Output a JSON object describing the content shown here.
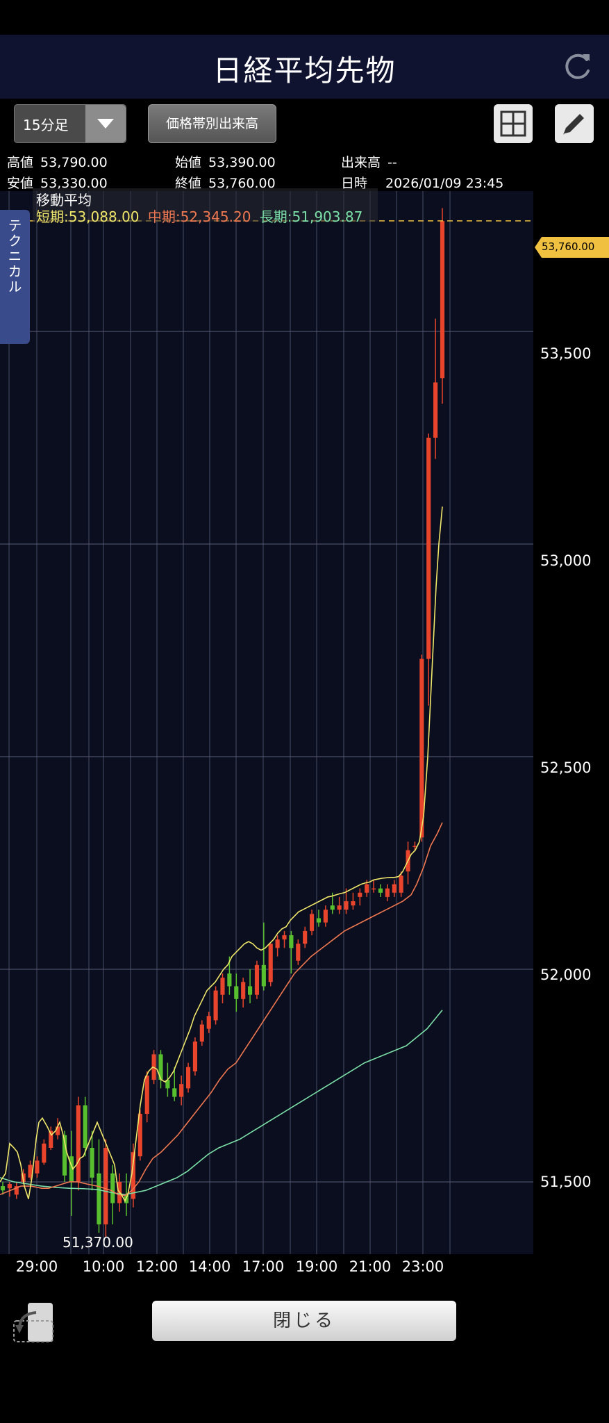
{
  "header": {
    "title": "日経平均先物"
  },
  "toolbar": {
    "timeframe": "15分足",
    "volume_profile_label": "価格帯別出来高"
  },
  "quote": {
    "high_label": "高値",
    "high": "53,790.00",
    "low_label": "安値",
    "low": "53,330.00",
    "open_label": "始値",
    "open": "53,390.00",
    "close_label": "終値",
    "close": "53,760.00",
    "volume_label": "出来高",
    "volume": "--",
    "datetime_label": "日時",
    "datetime": "2026/01/09 23:45"
  },
  "technical_tab": "テクニカル",
  "moving_average": {
    "title": "移動平均",
    "short": "短期:53,088.00",
    "mid": "中期:52,345.20",
    "long": "長期:51,903.87",
    "colors": {
      "short": "#f0e76a",
      "mid": "#f07850",
      "long": "#7be0a8"
    }
  },
  "chart_data": {
    "type": "candlestick",
    "ylim": [
      51330,
      53830
    ],
    "y_ticks": [
      "53,500",
      "53,000",
      "52,500",
      "52,000",
      "51,500"
    ],
    "y_tick_values": [
      53500,
      53000,
      52500,
      52000,
      51500
    ],
    "x_ticks": [
      "29:00",
      "10:00",
      "12:00",
      "14:00",
      "17:00",
      "19:00",
      "21:00",
      "23:00"
    ],
    "last_price": "53,760.00",
    "last_price_value": 53760,
    "session_low_label": "51,370.00",
    "colors": {
      "up": "#e8452c",
      "down": "#58c02f",
      "last_line": "#f0c040",
      "grid": "#4a4e66",
      "bg": "#0b0e1e"
    },
    "candles": [
      [
        51490,
        51500,
        51470,
        51480
      ],
      [
        51485,
        51500,
        51465,
        51495
      ],
      [
        51470,
        51500,
        51460,
        51490
      ],
      [
        51500,
        51530,
        51495,
        51520
      ],
      [
        51510,
        51550,
        51505,
        51540
      ],
      [
        51520,
        51560,
        51510,
        51550
      ],
      [
        51545,
        51600,
        51540,
        51590
      ],
      [
        51580,
        51630,
        51575,
        51620
      ],
      [
        51610,
        51650,
        51600,
        51630
      ],
      [
        51610,
        51620,
        51500,
        51515
      ],
      [
        51560,
        51620,
        51420,
        51500
      ],
      [
        51500,
        51700,
        51480,
        51680
      ],
      [
        51680,
        51700,
        51560,
        51580
      ],
      [
        51580,
        51620,
        51480,
        51510
      ],
      [
        51520,
        51600,
        51380,
        51400
      ],
      [
        51400,
        51600,
        51370,
        51580
      ],
      [
        51520,
        51540,
        51400,
        51450
      ],
      [
        51450,
        51520,
        51430,
        51500
      ],
      [
        51470,
        51520,
        51420,
        51450
      ],
      [
        51460,
        51590,
        51440,
        51570
      ],
      [
        51560,
        51670,
        51550,
        51660
      ],
      [
        51660,
        51760,
        51640,
        51750
      ],
      [
        51740,
        51810,
        51730,
        51800
      ],
      [
        51800,
        51810,
        51720,
        51740
      ],
      [
        51740,
        51780,
        51700,
        51720
      ],
      [
        51720,
        51770,
        51690,
        51700
      ],
      [
        51700,
        51750,
        51680,
        51730
      ],
      [
        51720,
        51780,
        51710,
        51770
      ],
      [
        51760,
        51840,
        51750,
        51830
      ],
      [
        51830,
        51880,
        51820,
        51870
      ],
      [
        51860,
        51900,
        51850,
        51890
      ],
      [
        51880,
        51960,
        51870,
        51950
      ],
      [
        51940,
        51990,
        51920,
        51980
      ],
      [
        51990,
        52030,
        51940,
        51960
      ],
      [
        51960,
        51990,
        51900,
        51930
      ],
      [
        51930,
        51980,
        51910,
        51970
      ],
      [
        51960,
        52000,
        51920,
        51940
      ],
      [
        51940,
        52020,
        51930,
        52010
      ],
      [
        52010,
        52110,
        51950,
        51960
      ],
      [
        51970,
        52060,
        51960,
        52060
      ],
      [
        52050,
        52080,
        52030,
        52070
      ],
      [
        52070,
        52090,
        52050,
        52080
      ],
      [
        52080,
        52090,
        51990,
        52050
      ],
      [
        52020,
        52070,
        52010,
        52060
      ],
      [
        52060,
        52100,
        52050,
        52090
      ],
      [
        52090,
        52140,
        52080,
        52130
      ],
      [
        52120,
        52140,
        52100,
        52110
      ],
      [
        52110,
        52150,
        52100,
        52140
      ],
      [
        52150,
        52180,
        52130,
        52140
      ],
      [
        52140,
        52170,
        52130,
        52150
      ],
      [
        52140,
        52190,
        52130,
        52160
      ],
      [
        52150,
        52180,
        52140,
        52160
      ],
      [
        52170,
        52190,
        52150,
        52180
      ],
      [
        52180,
        52210,
        52170,
        52200
      ],
      [
        52190,
        52210,
        52180,
        52190
      ],
      [
        52190,
        52200,
        52170,
        52180
      ],
      [
        52170,
        52200,
        52160,
        52190
      ],
      [
        52180,
        52210,
        52170,
        52200
      ],
      [
        52180,
        52230,
        52170,
        52220
      ],
      [
        52230,
        52300,
        52200,
        52280
      ],
      [
        52290,
        52300,
        52280,
        52290
      ],
      [
        52310,
        52740,
        52300,
        52730
      ],
      [
        52730,
        53260,
        52620,
        53250
      ],
      [
        53250,
        53530,
        53200,
        53380
      ],
      [
        53390,
        53790,
        53330,
        53760
      ]
    ],
    "ma_short": [
      [
        0,
        51500
      ],
      [
        8,
        51520
      ],
      [
        14,
        51590
      ],
      [
        20,
        51580
      ],
      [
        25,
        51570
      ],
      [
        30,
        51540
      ],
      [
        35,
        51490
      ],
      [
        41,
        51460
      ],
      [
        46,
        51510
      ],
      [
        52,
        51600
      ],
      [
        56,
        51640
      ],
      [
        61,
        51650
      ],
      [
        68,
        51630
      ],
      [
        74,
        51610
      ],
      [
        80,
        51620
      ],
      [
        86,
        51640
      ],
      [
        91,
        51610
      ],
      [
        96,
        51570
      ],
      [
        100,
        51550
      ],
      [
        105,
        51530
      ],
      [
        110,
        51540
      ],
      [
        115,
        51555
      ],
      [
        120,
        51560
      ],
      [
        125,
        51580
      ],
      [
        130,
        51600
      ],
      [
        135,
        51620
      ],
      [
        140,
        51640
      ],
      [
        145,
        51620
      ],
      [
        150,
        51600
      ],
      [
        155,
        51580
      ],
      [
        160,
        51560
      ],
      [
        165,
        51540
      ],
      [
        170,
        51480
      ],
      [
        175,
        51470
      ],
      [
        180,
        51455
      ],
      [
        184,
        51470
      ],
      [
        190,
        51520
      ],
      [
        196,
        51600
      ],
      [
        202,
        51680
      ],
      [
        208,
        51740
      ],
      [
        214,
        51760
      ],
      [
        220,
        51770
      ],
      [
        226,
        51765
      ],
      [
        232,
        51740
      ],
      [
        238,
        51735
      ],
      [
        244,
        51745
      ],
      [
        250,
        51760
      ],
      [
        256,
        51785
      ],
      [
        262,
        51810
      ],
      [
        268,
        51835
      ],
      [
        274,
        51860
      ],
      [
        280,
        51890
      ],
      [
        286,
        51910
      ],
      [
        292,
        51930
      ],
      [
        298,
        51950
      ],
      [
        304,
        51960
      ],
      [
        310,
        51970
      ],
      [
        316,
        51985
      ],
      [
        322,
        52000
      ],
      [
        328,
        52010
      ],
      [
        334,
        52030
      ],
      [
        340,
        52040
      ],
      [
        346,
        52050
      ],
      [
        352,
        52060
      ],
      [
        358,
        52065
      ],
      [
        364,
        52060
      ],
      [
        370,
        52050
      ],
      [
        376,
        52045
      ],
      [
        382,
        52050
      ],
      [
        388,
        52060
      ],
      [
        394,
        52070
      ],
      [
        400,
        52085
      ],
      [
        406,
        52095
      ],
      [
        412,
        52100
      ],
      [
        418,
        52115
      ],
      [
        424,
        52125
      ],
      [
        430,
        52135
      ],
      [
        436,
        52140
      ],
      [
        442,
        52145
      ],
      [
        448,
        52150
      ],
      [
        454,
        52155
      ],
      [
        460,
        52160
      ],
      [
        466,
        52165
      ],
      [
        472,
        52170
      ],
      [
        478,
        52172
      ],
      [
        484,
        52175
      ],
      [
        490,
        52178
      ],
      [
        496,
        52180
      ],
      [
        502,
        52185
      ],
      [
        508,
        52190
      ],
      [
        514,
        52195
      ],
      [
        520,
        52200
      ],
      [
        526,
        52203
      ],
      [
        532,
        52205
      ],
      [
        538,
        52210
      ],
      [
        544,
        52212
      ],
      [
        550,
        52214
      ],
      [
        556,
        52215
      ],
      [
        562,
        52216
      ],
      [
        568,
        52216
      ],
      [
        574,
        52218
      ],
      [
        580,
        52230
      ],
      [
        586,
        52250
      ],
      [
        592,
        52270
      ],
      [
        598,
        52280
      ],
      [
        604,
        52300
      ],
      [
        610,
        52360
      ],
      [
        616,
        52500
      ],
      [
        622,
        52700
      ],
      [
        628,
        52900
      ],
      [
        632,
        53000
      ],
      [
        637,
        53088
      ]
    ],
    "ma_mid": [
      [
        0,
        51470
      ],
      [
        15,
        51480
      ],
      [
        30,
        51490
      ],
      [
        45,
        51490
      ],
      [
        60,
        51485
      ],
      [
        70,
        51485
      ],
      [
        80,
        51490
      ],
      [
        90,
        51495
      ],
      [
        100,
        51500
      ],
      [
        112,
        51500
      ],
      [
        125,
        51495
      ],
      [
        140,
        51490
      ],
      [
        150,
        51485
      ],
      [
        160,
        51480
      ],
      [
        170,
        51470
      ],
      [
        180,
        51468
      ],
      [
        190,
        51480
      ],
      [
        200,
        51500
      ],
      [
        210,
        51530
      ],
      [
        220,
        51555
      ],
      [
        232,
        51570
      ],
      [
        244,
        51590
      ],
      [
        256,
        51610
      ],
      [
        268,
        51635
      ],
      [
        280,
        51660
      ],
      [
        292,
        51685
      ],
      [
        304,
        51710
      ],
      [
        316,
        51740
      ],
      [
        328,
        51765
      ],
      [
        340,
        51780
      ],
      [
        352,
        51810
      ],
      [
        364,
        51840
      ],
      [
        376,
        51870
      ],
      [
        388,
        51900
      ],
      [
        400,
        51930
      ],
      [
        412,
        51960
      ],
      [
        424,
        51990
      ],
      [
        436,
        52010
      ],
      [
        448,
        52030
      ],
      [
        460,
        52045
      ],
      [
        472,
        52060
      ],
      [
        484,
        52075
      ],
      [
        496,
        52090
      ],
      [
        508,
        52100
      ],
      [
        520,
        52110
      ],
      [
        532,
        52120
      ],
      [
        544,
        52130
      ],
      [
        556,
        52140
      ],
      [
        568,
        52150
      ],
      [
        580,
        52160
      ],
      [
        592,
        52175
      ],
      [
        600,
        52200
      ],
      [
        610,
        52240
      ],
      [
        620,
        52290
      ],
      [
        630,
        52320
      ],
      [
        637,
        52345
      ]
    ],
    "ma_long": [
      [
        0,
        51510
      ],
      [
        20,
        51500
      ],
      [
        40,
        51495
      ],
      [
        60,
        51490
      ],
      [
        80,
        51487
      ],
      [
        100,
        51485
      ],
      [
        120,
        51484
      ],
      [
        140,
        51482
      ],
      [
        160,
        51475
      ],
      [
        180,
        51470
      ],
      [
        195,
        51475
      ],
      [
        210,
        51480
      ],
      [
        225,
        51490
      ],
      [
        240,
        51500
      ],
      [
        255,
        51510
      ],
      [
        270,
        51525
      ],
      [
        285,
        51545
      ],
      [
        300,
        51565
      ],
      [
        315,
        51580
      ],
      [
        330,
        51590
      ],
      [
        345,
        51600
      ],
      [
        360,
        51615
      ],
      [
        375,
        51630
      ],
      [
        390,
        51645
      ],
      [
        405,
        51660
      ],
      [
        420,
        51675
      ],
      [
        435,
        51690
      ],
      [
        450,
        51705
      ],
      [
        465,
        51720
      ],
      [
        480,
        51735
      ],
      [
        495,
        51750
      ],
      [
        510,
        51765
      ],
      [
        525,
        51780
      ],
      [
        540,
        51790
      ],
      [
        555,
        51800
      ],
      [
        570,
        51810
      ],
      [
        585,
        51820
      ],
      [
        600,
        51840
      ],
      [
        615,
        51860
      ],
      [
        630,
        51890
      ],
      [
        637,
        51904
      ]
    ]
  },
  "footer": {
    "close_label": "閉じる"
  }
}
